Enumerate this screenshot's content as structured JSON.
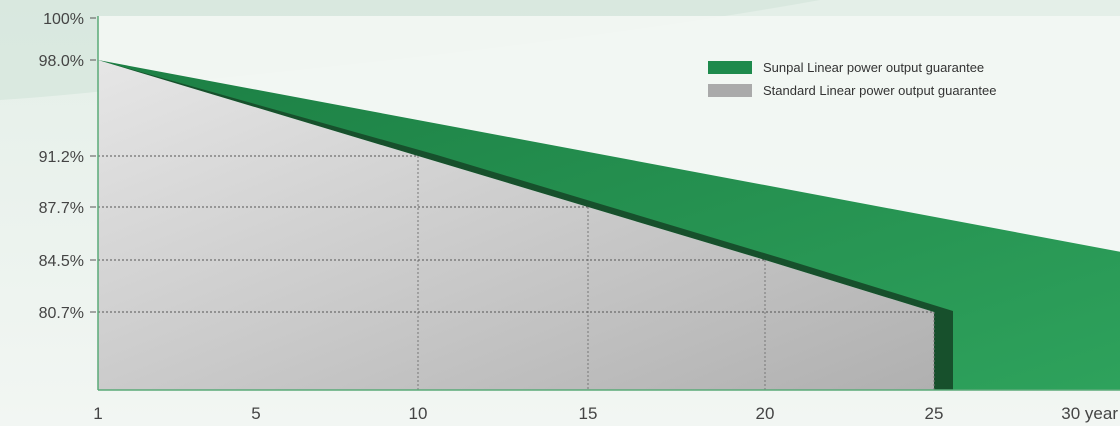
{
  "chart_data": {
    "type": "area",
    "x_ticks": [
      "1",
      "5",
      "10",
      "15",
      "20",
      "25",
      "30 year"
    ],
    "y_ticks": [
      "100%",
      "98.0%",
      "91.2%",
      "87.7%",
      "84.5%",
      "80.7%"
    ],
    "series": [
      {
        "name": "Sunpal Linear power output guarantee",
        "color": "#1e8a4c",
        "points": [
          {
            "x": 1,
            "y": 98.0
          },
          {
            "x": 30,
            "y": 85.0
          }
        ]
      },
      {
        "name": "Standard Linear power output guarantee",
        "color": "#aaaaaa",
        "points": [
          {
            "x": 1,
            "y": 98.0
          },
          {
            "x": 10,
            "y": 91.2
          },
          {
            "x": 15,
            "y": 87.7
          },
          {
            "x": 20,
            "y": 84.5
          },
          {
            "x": 25,
            "y": 80.7
          }
        ]
      }
    ],
    "reference_lines": [
      {
        "x": 10,
        "y": 91.2
      },
      {
        "x": 15,
        "y": 87.7
      },
      {
        "x": 20,
        "y": 84.5
      },
      {
        "x": 25,
        "y": 80.7
      }
    ],
    "legend_position": "top-right"
  }
}
